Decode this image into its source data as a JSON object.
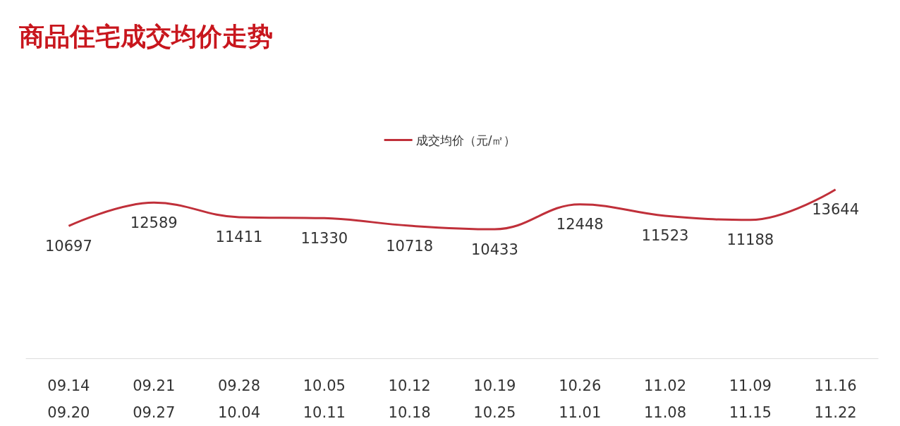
{
  "chart_data": {
    "type": "line",
    "title": "商品住宅成交均价走势",
    "categories": [
      "09.14\n09.20",
      "09.21\n09.27",
      "09.28\n10.04",
      "10.05\n10.11",
      "10.12\n10.18",
      "10.19\n10.25",
      "10.26\n11.01",
      "11.02\n11.08",
      "11.09\n11.15",
      "11.16\n11.22"
    ],
    "series": [
      {
        "name": "成交均价（元/㎡）",
        "color": "#c0303a",
        "values": [
          10697,
          12589,
          11411,
          11330,
          10718,
          10433,
          12448,
          11523,
          11188,
          13644
        ]
      }
    ],
    "data_labels": true,
    "legend": "top",
    "grid": false,
    "marker": "none",
    "line_style": "solid"
  }
}
